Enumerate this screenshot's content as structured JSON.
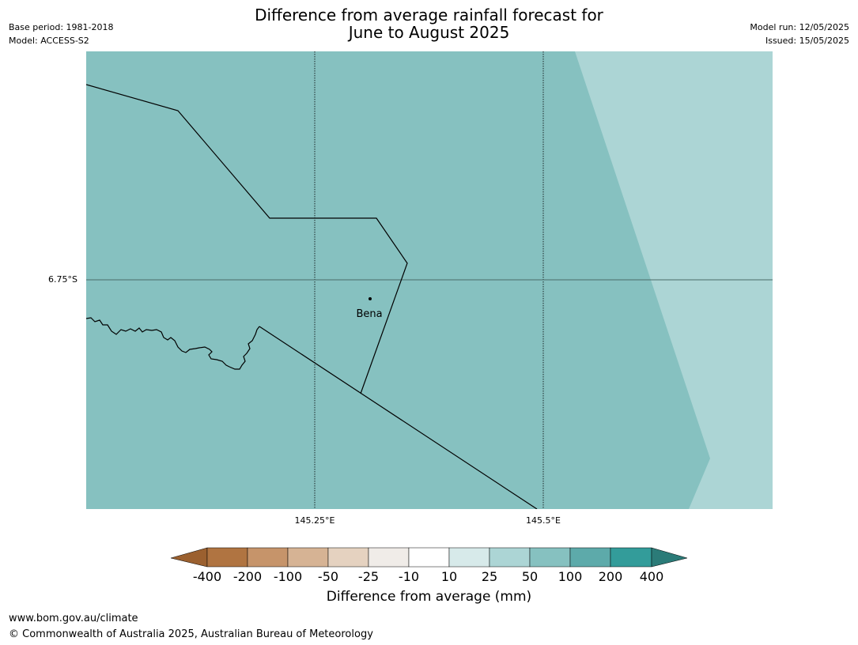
{
  "header": {
    "base_period": "Base period: 1981-2018",
    "model": "Model: ACCESS-S2",
    "model_run": "Model run: 12/05/2025",
    "issued": "Issued: 15/05/2025",
    "title_line1": "Difference from average rainfall forecast for",
    "title_line2": "June to August 2025"
  },
  "map": {
    "latitude_labels": [
      "6.75°S"
    ],
    "longitude_labels": [
      "145.25°E",
      "145.5°E"
    ],
    "place_label": "Bena",
    "region_categories": [
      {
        "range": "50 to 100 mm",
        "color": "#86c1c0"
      },
      {
        "range": "25 to 50 mm",
        "color": "#acd5d5"
      }
    ]
  },
  "legend": {
    "ticks": [
      "-400",
      "-200",
      "-100",
      "-50",
      "-25",
      "-10",
      "10",
      "25",
      "50",
      "100",
      "200",
      "400"
    ],
    "colors": [
      "#9b602f",
      "#b07441",
      "#c6946a",
      "#d6b394",
      "#e5d2c0",
      "#f0ece8",
      "#ffffff",
      "#d7eaea",
      "#acd5d5",
      "#86c1c0",
      "#5daaaa",
      "#339c9a",
      "#2b7b78"
    ],
    "label": "Difference from average (mm)"
  },
  "footer": {
    "website": "www.bom.gov.au/climate",
    "copyright": "© Commonwealth of Australia 2025, Australian Bureau of Meteorology"
  }
}
